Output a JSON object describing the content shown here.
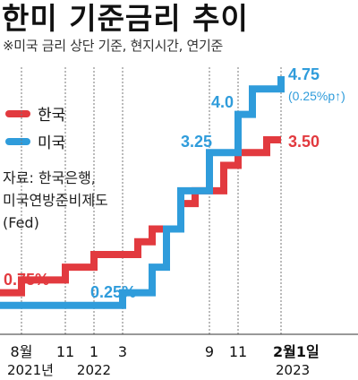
{
  "title": "한미 기준금리 추이",
  "subtitle": "※미국 금리 상단 기준, 현지시간, 연기준",
  "source": [
    "자료: 한국은행,",
    "미국연방준비제도",
    "(Fed)"
  ],
  "colors": {
    "korea": "#e23a3f",
    "us": "#2f9cdb"
  },
  "chart_data": {
    "type": "line",
    "step": true,
    "title": "한미 기준금리 추이",
    "xlabel": "",
    "ylabel": "",
    "ylim": [
      0,
      4.75
    ],
    "x_ticks": [
      {
        "month": "2021-08",
        "label": "8월",
        "year_label": "2021년"
      },
      {
        "month": "2021-11",
        "label": "11"
      },
      {
        "month": "2022-01",
        "label": "1",
        "year_label": "2022"
      },
      {
        "month": "2022-03",
        "label": "3"
      },
      {
        "month": "2022-09",
        "label": "9"
      },
      {
        "month": "2022-11",
        "label": "11"
      },
      {
        "month": "2023-02",
        "label": "2월1일",
        "year_label": "2023",
        "bold": true
      }
    ],
    "series": [
      {
        "name": "한국",
        "color": "#e23a3f",
        "points": [
          [
            "2021-07",
            0.5
          ],
          [
            "2021-08",
            0.75
          ],
          [
            "2021-11",
            1.0
          ],
          [
            "2022-01",
            1.25
          ],
          [
            "2022-04",
            1.5
          ],
          [
            "2022-05",
            1.75
          ],
          [
            "2022-07",
            2.25
          ],
          [
            "2022-08",
            2.5
          ],
          [
            "2022-10",
            3.0
          ],
          [
            "2022-11",
            3.25
          ],
          [
            "2023-01",
            3.5
          ],
          [
            "2023-02",
            3.5
          ]
        ],
        "labels": [
          {
            "text": "0.75%",
            "at": "2021-08",
            "value": 0.75
          },
          {
            "text": "3.50",
            "at": "2023-02",
            "value": 3.5
          }
        ]
      },
      {
        "name": "미국",
        "color": "#2f9cdb",
        "points": [
          [
            "2021-07",
            0.25
          ],
          [
            "2022-03",
            0.5
          ],
          [
            "2022-05",
            1.0
          ],
          [
            "2022-06",
            1.75
          ],
          [
            "2022-07",
            2.5
          ],
          [
            "2022-09",
            3.25
          ],
          [
            "2022-11",
            4.0
          ],
          [
            "2022-12",
            4.5
          ],
          [
            "2023-02",
            4.75
          ]
        ],
        "labels": [
          {
            "text": "0.25%",
            "at": "2021-11",
            "value": 0.25
          },
          {
            "text": "3.25",
            "at": "2022-09",
            "value": 3.25
          },
          {
            "text": "4.0",
            "at": "2022-11",
            "value": 4.0
          },
          {
            "text": "4.75",
            "at": "2023-02",
            "value": 4.75
          },
          {
            "text": "(0.25%p↑)",
            "at": "2023-02",
            "value": 4.75,
            "sub": true
          }
        ]
      }
    ]
  }
}
